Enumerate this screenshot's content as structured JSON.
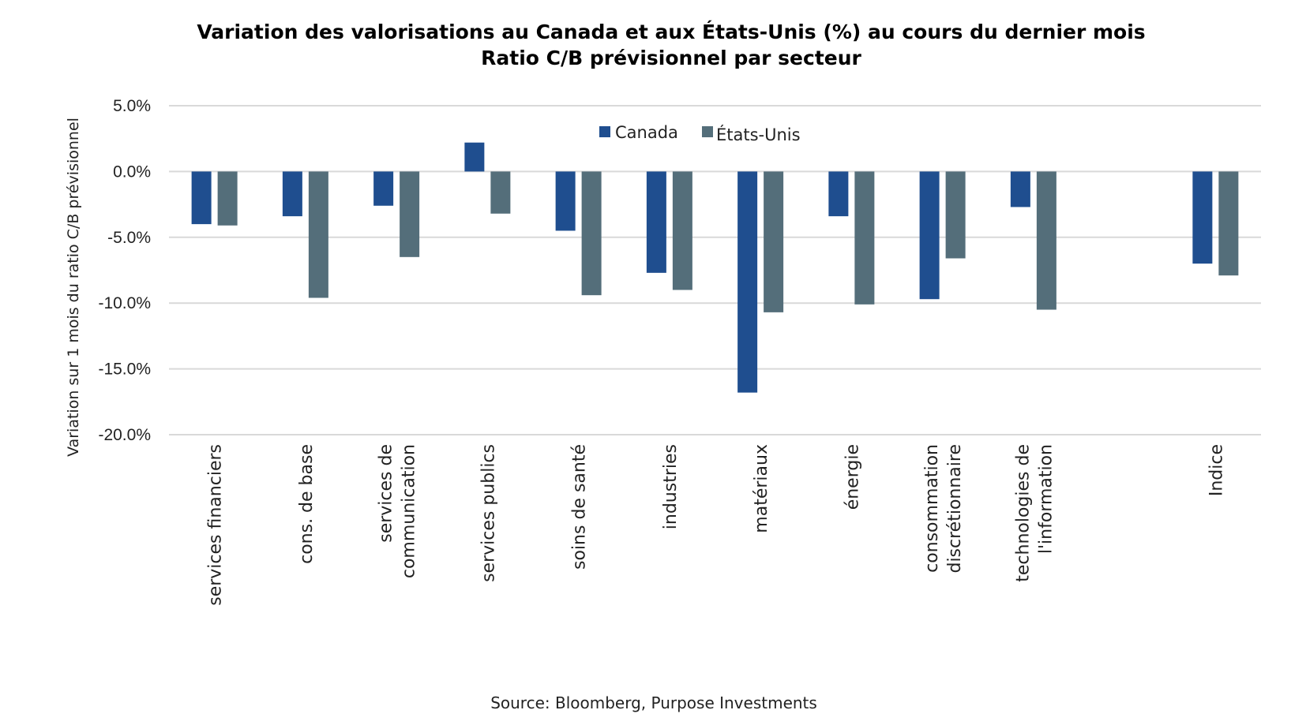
{
  "chart_data": {
    "type": "bar",
    "title": "Variation des valorisations au Canada et aux États-Unis (%) au cours du dernier mois",
    "subtitle": "Ratio C/B prévisionnel par secteur",
    "xlabel": "",
    "ylabel": "Variation sur 1 mois du ratio C/B prévisionnel",
    "ylim": [
      -20,
      5
    ],
    "yticks": [
      5,
      0,
      -5,
      -10,
      -15,
      -20
    ],
    "ytick_labels": [
      "5.0%",
      "0.0%",
      "-5.0%",
      "-10.0%",
      "-15.0%",
      "-20.0%"
    ],
    "grid": true,
    "legend_position": "top-center",
    "categories": [
      [
        "services financiers"
      ],
      [
        "cons. de base"
      ],
      [
        "services de",
        "communication"
      ],
      [
        "services publics"
      ],
      [
        "soins de santé"
      ],
      [
        "industries"
      ],
      [
        "matériaux"
      ],
      [
        "énergie"
      ],
      [
        "consommation",
        "discrétionnaire"
      ],
      [
        "technologies de",
        "l'information"
      ],
      [
        ""
      ],
      [
        "Indice"
      ]
    ],
    "series": [
      {
        "name": "Canada",
        "color": "#1f4e8f",
        "values": [
          -4.0,
          -3.4,
          -2.6,
          2.2,
          -4.5,
          -7.7,
          -16.8,
          -3.4,
          -9.7,
          -2.7,
          null,
          -7.0
        ]
      },
      {
        "name": "États-Unis",
        "color": "#546e7a",
        "values": [
          -4.1,
          -9.6,
          -6.5,
          -3.2,
          -9.4,
          -9.0,
          -10.7,
          -10.1,
          -6.6,
          -10.5,
          null,
          -7.9
        ]
      }
    ],
    "source": "Source: Bloomberg, Purpose Investments"
  }
}
